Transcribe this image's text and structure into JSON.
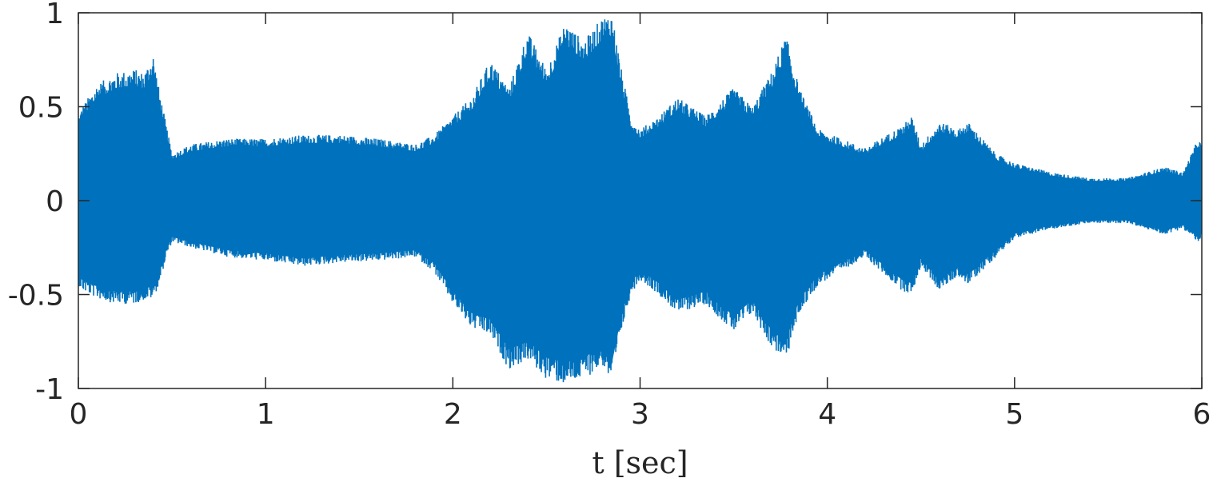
{
  "chart_data": {
    "type": "line",
    "title": "",
    "xlabel": "t [sec]",
    "ylabel": "",
    "xlim": [
      0,
      6
    ],
    "ylim": [
      -1,
      1
    ],
    "xticks": [
      0,
      1,
      2,
      3,
      4,
      5,
      6
    ],
    "xtick_labels": [
      "0",
      "1",
      "2",
      "3",
      "4",
      "5",
      "6"
    ],
    "yticks": [
      1,
      0.5,
      0,
      -0.5,
      -1
    ],
    "ytick_labels": [
      "1",
      "0.5",
      "0",
      "-0.5",
      "-1"
    ],
    "grid": false,
    "box": true,
    "series": [
      {
        "name": "",
        "color": "#0072BD",
        "envelope_time": [
          0.0,
          0.02,
          0.1,
          0.2,
          0.3,
          0.35,
          0.4,
          0.43,
          0.47,
          0.5,
          0.6,
          0.8,
          1.0,
          1.2,
          1.4,
          1.6,
          1.8,
          1.9,
          2.0,
          2.1,
          2.2,
          2.3,
          2.4,
          2.5,
          2.6,
          2.7,
          2.8,
          2.85,
          2.9,
          2.95,
          3.0,
          3.1,
          3.2,
          3.35,
          3.5,
          3.6,
          3.7,
          3.78,
          3.85,
          3.95,
          4.2,
          4.4,
          4.45,
          4.5,
          4.6,
          4.7,
          4.75,
          4.9,
          5.0,
          5.2,
          5.4,
          5.6,
          5.8,
          5.9,
          5.98,
          6.0
        ],
        "envelope_upper": [
          0.45,
          0.5,
          0.62,
          0.68,
          0.7,
          0.68,
          0.78,
          0.6,
          0.4,
          0.25,
          0.3,
          0.33,
          0.33,
          0.35,
          0.35,
          0.33,
          0.3,
          0.35,
          0.45,
          0.55,
          0.75,
          0.6,
          0.9,
          0.7,
          0.95,
          0.85,
          0.98,
          1.0,
          0.7,
          0.45,
          0.38,
          0.45,
          0.55,
          0.45,
          0.6,
          0.5,
          0.68,
          0.88,
          0.6,
          0.38,
          0.28,
          0.4,
          0.45,
          0.3,
          0.42,
          0.38,
          0.42,
          0.25,
          0.2,
          0.15,
          0.12,
          0.12,
          0.18,
          0.15,
          0.33,
          0.3
        ],
        "envelope_lower": [
          -0.45,
          -0.48,
          -0.52,
          -0.55,
          -0.55,
          -0.53,
          -0.52,
          -0.45,
          -0.3,
          -0.22,
          -0.25,
          -0.3,
          -0.32,
          -0.35,
          -0.33,
          -0.32,
          -0.3,
          -0.38,
          -0.55,
          -0.68,
          -0.72,
          -0.9,
          -0.85,
          -0.95,
          -0.98,
          -0.95,
          -0.88,
          -0.98,
          -0.7,
          -0.5,
          -0.42,
          -0.5,
          -0.6,
          -0.55,
          -0.7,
          -0.6,
          -0.78,
          -0.85,
          -0.6,
          -0.45,
          -0.3,
          -0.48,
          -0.5,
          -0.35,
          -0.48,
          -0.4,
          -0.45,
          -0.3,
          -0.2,
          -0.15,
          -0.12,
          -0.12,
          -0.18,
          -0.15,
          -0.22,
          -0.2
        ]
      }
    ]
  }
}
